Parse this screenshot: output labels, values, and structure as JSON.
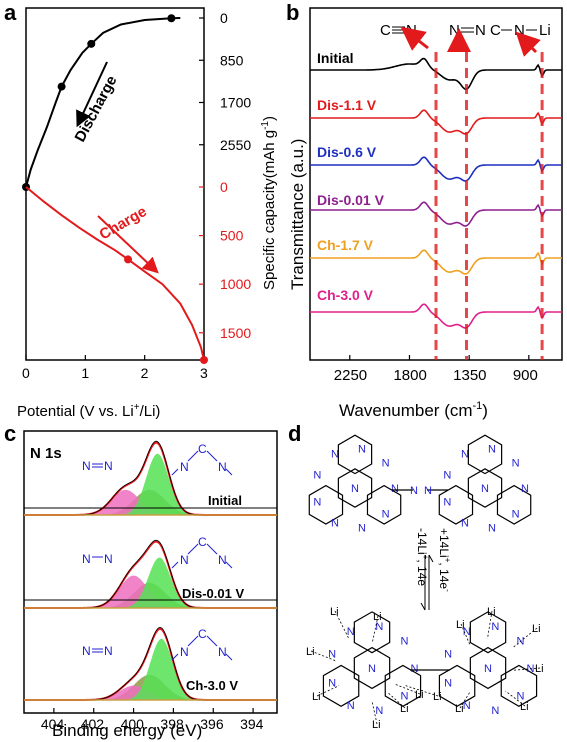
{
  "colors": {
    "black": "#000000",
    "red": "#e31a1c",
    "blue": "#1f2fbf",
    "purple": "#8e1f8e",
    "orange": "#f0a020",
    "magenta": "#e0208a",
    "green_fill": "#55e255",
    "pink_fill": "#ee6fc0",
    "olive_fill": "#8e9a4a",
    "atom_blue": "#1f1fd0"
  },
  "panels": {
    "a": "a",
    "b": "b",
    "c": "c",
    "d": "d"
  },
  "chart_data": [
    {
      "type": "line",
      "panel": "a",
      "xlabel": "Potential (V vs. Li",
      "xlabel_sup": "+",
      "xlabel_end": "/Li)",
      "ylabel": "Specific capacity(mAh g",
      "ylabel_sup": "-1",
      "ylabel_end": ")",
      "xticks": [
        "0",
        "1",
        "2",
        "3"
      ],
      "xlim": [
        0,
        3
      ],
      "yticks_top": [
        "0",
        "850",
        "1700",
        "2550"
      ],
      "yticks_bottom": [
        "0",
        "500",
        "1000",
        "1500"
      ],
      "series": [
        {
          "name": "Discharge",
          "axis": "top",
          "ylim": [
            0,
            3400
          ],
          "x": [
            0.0,
            0.08,
            0.2,
            0.35,
            0.5,
            0.6,
            0.75,
            0.95,
            1.1,
            1.3,
            1.6,
            2.0,
            2.45,
            2.6
          ],
          "y": [
            3400,
            3050,
            2650,
            2200,
            1700,
            1380,
            1050,
            700,
            520,
            300,
            130,
            40,
            5,
            0
          ],
          "markers": [
            [
              0.0,
              3400
            ],
            [
              0.6,
              1380
            ],
            [
              1.1,
              520
            ],
            [
              2.45,
              5
            ]
          ]
        },
        {
          "name": "Charge",
          "axis": "bottom",
          "ylim": [
            0,
            1780
          ],
          "x": [
            0.0,
            0.3,
            0.6,
            0.9,
            1.2,
            1.5,
            1.72,
            2.0,
            2.3,
            2.6,
            2.8,
            2.95,
            3.0
          ],
          "y": [
            0,
            150,
            290,
            420,
            540,
            650,
            745,
            870,
            1000,
            1200,
            1420,
            1650,
            1780
          ],
          "markers": [
            [
              1.72,
              745
            ],
            [
              3.0,
              1780
            ]
          ]
        }
      ],
      "annotations": [
        "Discharge",
        "Charge"
      ]
    },
    {
      "type": "line",
      "panel": "b",
      "xlabel": "Wavenumber (cm",
      "xlabel_sup": "-1",
      "xlabel_end": ")",
      "ylabel": "Transmittance (a.u.)",
      "xticks": [
        "2250",
        "1800",
        "1350",
        "900"
      ],
      "xlim": [
        2550,
        650
      ],
      "series": [
        {
          "name": "Initial"
        },
        {
          "name": "Dis-1.1 V"
        },
        {
          "name": "Dis-0.6 V"
        },
        {
          "name": "Dis-0.01 V"
        },
        {
          "name": "Ch-1.7 V"
        },
        {
          "name": "Ch-3.0 V"
        }
      ],
      "markers_x": [
        1600,
        1370,
        800
      ],
      "annotations": [
        "C",
        "N",
        "N",
        "N",
        "C",
        "N",
        "Li"
      ]
    },
    {
      "type": "area",
      "panel": "c",
      "title": "N 1s",
      "xlabel": "Binding energy (eV)",
      "xticks": [
        "404",
        "402",
        "400",
        "398",
        "396",
        "394"
      ],
      "xlim": [
        405.5,
        392.8
      ],
      "series": [
        {
          "name": "Initial",
          "n_n_peak": 400.4,
          "n_n_height": 0.35,
          "cn_peak": 398.8,
          "cn_height": 0.85
        },
        {
          "name": "Dis-0.01 V",
          "n_n_peak": 400.0,
          "n_n_height": 0.45,
          "cn_peak": 398.7,
          "cn_height": 0.7
        },
        {
          "name": "Ch-3.0 V",
          "n_n_peak": 400.0,
          "n_n_height": 0.2,
          "cn_peak": 398.6,
          "cn_height": 0.85
        }
      ]
    }
  ],
  "panel_d": {
    "arrow_forward": "+14Li",
    "arrow_forward_sup": "+",
    "arrow_forward_end": ", 14e",
    "arrow_forward_sup2": "-",
    "arrow_back": "-14Li",
    "arrow_back_sup": "+",
    "arrow_back_end": ", 14e",
    "arrow_back_sup2": "-",
    "li_label": "Li",
    "n_label": "N"
  }
}
